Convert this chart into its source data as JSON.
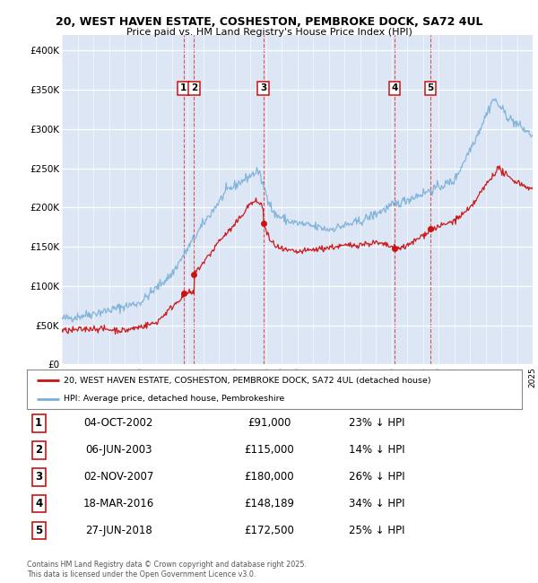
{
  "title1": "20, WEST HAVEN ESTATE, COSHESTON, PEMBROKE DOCK, SA72 4UL",
  "title2": "Price paid vs. HM Land Registry's House Price Index (HPI)",
  "plot_bg": "#dce6f5",
  "ylim": [
    0,
    420000
  ],
  "yticks": [
    0,
    50000,
    100000,
    150000,
    200000,
    250000,
    300000,
    350000,
    400000
  ],
  "ytick_labels": [
    "£0",
    "£50K",
    "£100K",
    "£150K",
    "£200K",
    "£250K",
    "£300K",
    "£350K",
    "£400K"
  ],
  "hpi_color": "#7ab0d8",
  "price_color": "#cc1111",
  "sale_dates": [
    2002.75,
    2003.42,
    2007.83,
    2016.21,
    2018.49
  ],
  "sale_prices": [
    91000,
    115000,
    180000,
    148189,
    172500
  ],
  "sale_labels": [
    "1",
    "2",
    "3",
    "4",
    "5"
  ],
  "table_rows": [
    [
      "1",
      "04-OCT-2002",
      "£91,000",
      "23% ↓ HPI"
    ],
    [
      "2",
      "06-JUN-2003",
      "£115,000",
      "14% ↓ HPI"
    ],
    [
      "3",
      "02-NOV-2007",
      "£180,000",
      "26% ↓ HPI"
    ],
    [
      "4",
      "18-MAR-2016",
      "£148,189",
      "34% ↓ HPI"
    ],
    [
      "5",
      "27-JUN-2018",
      "£172,500",
      "25% ↓ HPI"
    ]
  ],
  "legend_line1": "20, WEST HAVEN ESTATE, COSHESTON, PEMBROKE DOCK, SA72 4UL (detached house)",
  "legend_line2": "HPI: Average price, detached house, Pembrokeshire",
  "footnote": "Contains HM Land Registry data © Crown copyright and database right 2025.\nThis data is licensed under the Open Government Licence v3.0.",
  "xstart": 1995,
  "xend": 2025
}
